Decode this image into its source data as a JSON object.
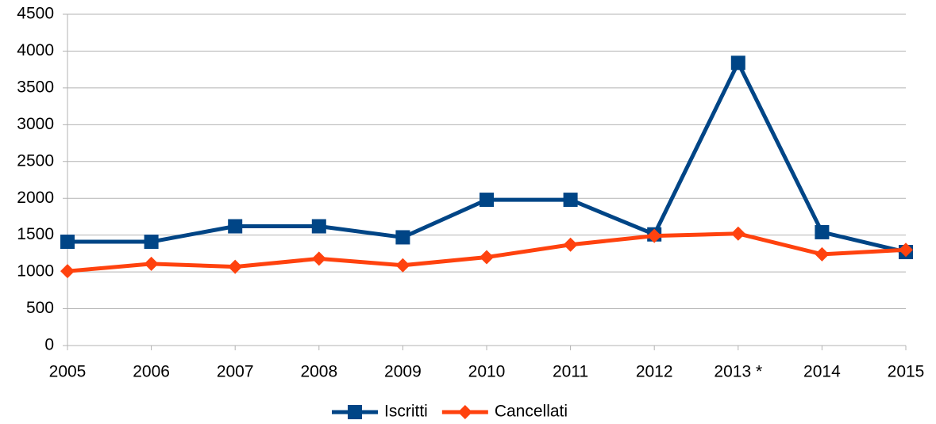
{
  "chart_data": {
    "type": "line",
    "categories": [
      "2005",
      "2006",
      "2007",
      "2008",
      "2009",
      "2010",
      "2011",
      "2012",
      "2013 *",
      "2014",
      "2015"
    ],
    "series": [
      {
        "name": "Iscritti",
        "color": "#004586",
        "marker": "square",
        "values": [
          1410,
          1410,
          1620,
          1620,
          1470,
          1980,
          1980,
          1510,
          3840,
          1540,
          1270
        ]
      },
      {
        "name": "Cancellati",
        "color": "#ff420e",
        "marker": "diamond",
        "values": [
          1010,
          1110,
          1070,
          1180,
          1090,
          1200,
          1370,
          1490,
          1520,
          1240,
          1300
        ]
      }
    ],
    "ylim": [
      0,
      4500
    ],
    "yticks": [
      0,
      500,
      1000,
      1500,
      2000,
      2500,
      3000,
      3500,
      4000,
      4500
    ],
    "grid": true,
    "legend": "bottom"
  }
}
